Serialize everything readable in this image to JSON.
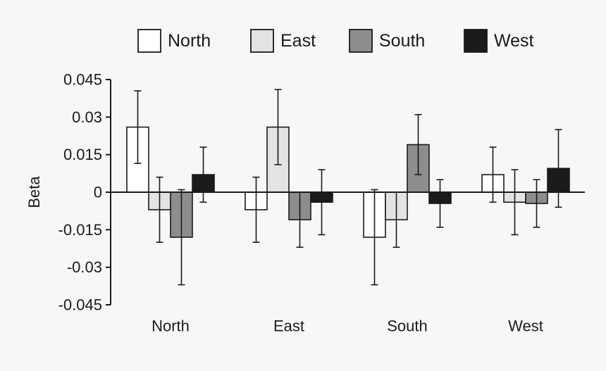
{
  "chart_data": {
    "type": "bar",
    "title": "",
    "xlabel": "",
    "ylabel": "Beta",
    "ylim": [
      -0.045,
      0.045
    ],
    "yticks": [
      "0.045",
      "0.03",
      "0.015",
      "0",
      "-0.015",
      "-0.03",
      "-0.045"
    ],
    "ytick_values": [
      0.045,
      0.03,
      0.015,
      0,
      -0.015,
      -0.03,
      -0.045
    ],
    "categories": [
      "North",
      "East",
      "South",
      "West"
    ],
    "legend_position": "top",
    "grid": false,
    "series": [
      {
        "name": "North",
        "color": "#ffffff",
        "values": [
          0.026,
          -0.007,
          -0.018,
          0.007
        ],
        "errors": [
          0.0145,
          0.013,
          0.019,
          0.011
        ]
      },
      {
        "name": "East",
        "color": "#e2e3e2",
        "values": [
          -0.007,
          0.026,
          -0.011,
          -0.004
        ],
        "errors": [
          0.013,
          0.015,
          0.011,
          0.013
        ]
      },
      {
        "name": "South",
        "color": "#8d8d8d",
        "values": [
          -0.018,
          -0.011,
          0.019,
          -0.0045
        ],
        "errors": [
          0.019,
          0.011,
          0.012,
          0.0095
        ]
      },
      {
        "name": "West",
        "color": "#1c1a1b",
        "values": [
          0.007,
          -0.004,
          -0.0045,
          0.0095
        ],
        "errors": [
          0.011,
          0.013,
          0.0095,
          0.0155
        ]
      }
    ]
  }
}
